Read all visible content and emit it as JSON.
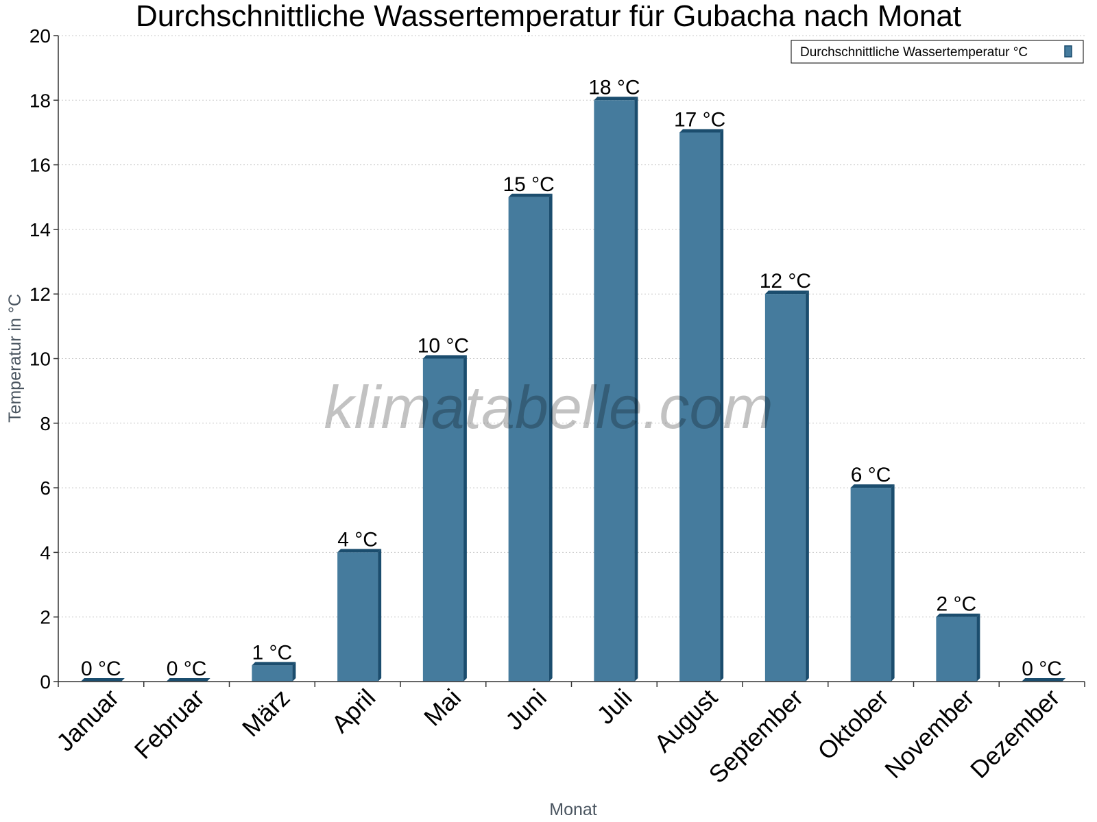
{
  "chart_data": {
    "type": "bar",
    "title": "Durchschnittliche Wassertemperatur für Gubacha nach Monat",
    "xlabel": "Monat",
    "ylabel": "Temperatur in °C",
    "categories": [
      "Januar",
      "Februar",
      "März",
      "April",
      "Mai",
      "Juni",
      "Juli",
      "August",
      "September",
      "Oktober",
      "November",
      "Dezember"
    ],
    "series": [
      {
        "name": "Durchschnittliche Wassertemperatur °C",
        "values": [
          0,
          0,
          0.5,
          4,
          10,
          15,
          18,
          17,
          12,
          6,
          2,
          0
        ],
        "labels": [
          "0 °C",
          "0 °C",
          "1 °C",
          "4 °C",
          "10 °C",
          "15 °C",
          "18 °C",
          "17 °C",
          "12 °C",
          "6 °C",
          "2 °C",
          "0 °C"
        ],
        "color": "#457b9d"
      }
    ],
    "ylim": [
      0,
      20
    ],
    "yticks": [
      "0",
      "2",
      "4",
      "6",
      "8",
      "10",
      "12",
      "14",
      "16",
      "18",
      "20"
    ],
    "grid": true,
    "legend_position": "top-right",
    "watermark": "klimatabelle.com"
  },
  "colors": {
    "bar": "#457b9d",
    "bar_dark": "#1b4d6e",
    "grid": "#c8c8c8",
    "axis": "#333333"
  }
}
